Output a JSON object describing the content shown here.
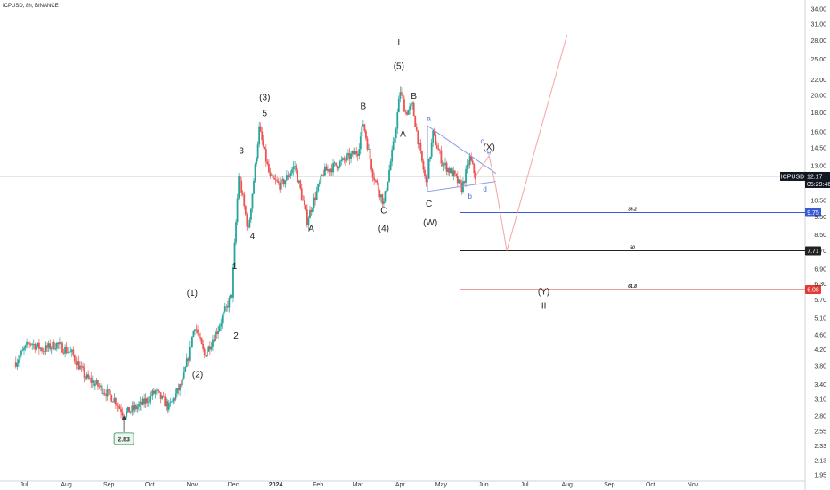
{
  "header": {
    "title": "ICPUSD, 8h, BINANCE"
  },
  "colors": {
    "up": "#26a69a",
    "down": "#ef5350",
    "fib382": "#3b5bd6",
    "fib50": "#222222",
    "fib618": "#e53935",
    "triangle": "#8a9be6",
    "projection": "#f4a5a5"
  },
  "chart_data": {
    "type": "candlestick",
    "y_axis": {
      "scale": "log",
      "ticks": [
        "34.00",
        "31.00",
        "28.00",
        "25.00",
        "22.00",
        "20.00",
        "18.00",
        "16.00",
        "14.50",
        "13.00",
        "10.50",
        "9.50",
        "8.50",
        "7.70",
        "6.90",
        "6.30",
        "5.70",
        "5.10",
        "4.60",
        "4.20",
        "3.80",
        "3.40",
        "3.10",
        "2.80",
        "2.55",
        "2.33",
        "2.13",
        "1.95"
      ]
    },
    "x_axis": {
      "ticks": [
        "Jul",
        "Aug",
        "Sep",
        "Oct",
        "Nov",
        "Dec",
        "2024",
        "Feb",
        "Mar",
        "Apr",
        "May",
        "Jun",
        "Jul",
        "Aug",
        "Sep",
        "Oct",
        "Nov"
      ]
    },
    "price_path": [
      {
        "date": "2023-06-25",
        "price": 3.9
      },
      {
        "date": "2023-07-05",
        "price": 4.4
      },
      {
        "date": "2023-07-15",
        "price": 4.2
      },
      {
        "date": "2023-07-25",
        "price": 4.35
      },
      {
        "date": "2023-08-05",
        "price": 4.1
      },
      {
        "date": "2023-08-15",
        "price": 3.55
      },
      {
        "date": "2023-08-25",
        "price": 3.35
      },
      {
        "date": "2023-09-05",
        "price": 3.1
      },
      {
        "date": "2023-09-12",
        "price": 2.83
      },
      {
        "date": "2023-09-25",
        "price": 3.0
      },
      {
        "date": "2023-10-05",
        "price": 3.25
      },
      {
        "date": "2023-10-15",
        "price": 2.95
      },
      {
        "date": "2023-10-25",
        "price": 3.45
      },
      {
        "date": "2023-11-03",
        "price": 4.9
      },
      {
        "date": "2023-11-10",
        "price": 4.05
      },
      {
        "date": "2023-11-20",
        "price": 4.8
      },
      {
        "date": "2023-11-30",
        "price": 5.9
      },
      {
        "date": "2023-12-05",
        "price": 12.3
      },
      {
        "date": "2023-12-12",
        "price": 8.7
      },
      {
        "date": "2023-12-20",
        "price": 16.3
      },
      {
        "date": "2023-12-28",
        "price": 12.0
      },
      {
        "date": "2024-01-05",
        "price": 11.5
      },
      {
        "date": "2024-01-15",
        "price": 13.0
      },
      {
        "date": "2024-01-24",
        "price": 9.3
      },
      {
        "date": "2024-02-05",
        "price": 12.5
      },
      {
        "date": "2024-02-20",
        "price": 13.4
      },
      {
        "date": "2024-03-01",
        "price": 14.2
      },
      {
        "date": "2024-03-05",
        "price": 16.9
      },
      {
        "date": "2024-03-12",
        "price": 12.4
      },
      {
        "date": "2024-03-20",
        "price": 10.3
      },
      {
        "date": "2024-03-28",
        "price": 15.5
      },
      {
        "date": "2024-04-01",
        "price": 20.6
      },
      {
        "date": "2024-04-05",
        "price": 18.0
      },
      {
        "date": "2024-04-10",
        "price": 18.7
      },
      {
        "date": "2024-04-15",
        "price": 14.5
      },
      {
        "date": "2024-04-20",
        "price": 11.6
      },
      {
        "date": "2024-04-25",
        "price": 15.8
      },
      {
        "date": "2024-05-02",
        "price": 13.2
      },
      {
        "date": "2024-05-10",
        "price": 12.3
      },
      {
        "date": "2024-05-16",
        "price": 11.3
      },
      {
        "date": "2024-05-22",
        "price": 13.6
      },
      {
        "date": "2024-05-26",
        "price": 12.17
      }
    ],
    "wave_labels": [
      {
        "text": "(1)",
        "date": "2023-11-01",
        "price": 5.85
      },
      {
        "text": "(2)",
        "date": "2023-11-05",
        "price": 3.55
      },
      {
        "text": "1",
        "date": "2023-12-02",
        "price": 6.9
      },
      {
        "text": "2",
        "date": "2023-12-03",
        "price": 4.5
      },
      {
        "text": "3",
        "date": "2023-12-07",
        "price": 14.0
      },
      {
        "text": "4",
        "date": "2023-12-15",
        "price": 8.3
      },
      {
        "text": "5",
        "date": "2023-12-24",
        "price": 17.6
      },
      {
        "text": "(3)",
        "date": "2023-12-24",
        "price": 19.4
      },
      {
        "text": "A",
        "date": "2024-01-27",
        "price": 8.7
      },
      {
        "text": "B",
        "date": "2024-03-05",
        "price": 18.4
      },
      {
        "text": "C",
        "date": "2024-03-20",
        "price": 9.7
      },
      {
        "text": "(4)",
        "date": "2024-03-20",
        "price": 8.7
      },
      {
        "text": "(5)",
        "date": "2024-03-31",
        "price": 23.5
      },
      {
        "text": "I",
        "date": "2024-03-31",
        "price": 27.2
      },
      {
        "text": "A",
        "date": "2024-04-03",
        "price": 15.5
      },
      {
        "text": "B",
        "date": "2024-04-11",
        "price": 19.6
      },
      {
        "text": "C",
        "date": "2024-04-22",
        "price": 10.1
      },
      {
        "text": "(W)",
        "date": "2024-04-23",
        "price": 9.0
      },
      {
        "text": "(X)",
        "date": "2024-06-05",
        "price": 14.3
      },
      {
        "text": "(Y)",
        "date": "2024-07-15",
        "price": 5.9
      },
      {
        "text": "II",
        "date": "2024-07-15",
        "price": 5.4
      }
    ],
    "triangle_labels": [
      {
        "text": "a",
        "date": "2024-04-22",
        "price": 17.1
      },
      {
        "text": "b",
        "date": "2024-05-22",
        "price": 10.6
      },
      {
        "text": "c",
        "date": "2024-05-31",
        "price": 14.9
      },
      {
        "text": "d",
        "date": "2024-06-02",
        "price": 11.1
      },
      {
        "text": "e",
        "date": "2024-06-05",
        "price": 13.9
      }
    ],
    "fib_levels": [
      {
        "label": "38.2",
        "price": 9.75,
        "tag": "9.75",
        "color": "#3b5bd6"
      },
      {
        "label": "50",
        "price": 7.71,
        "tag": "7.71",
        "color": "#222222"
      },
      {
        "label": "61.8",
        "price": 6.08,
        "tag": "6.08",
        "color": "#e53935"
      }
    ],
    "current": {
      "symbol": "ICPUSD",
      "price": "12.17",
      "countdown": "05:29:46",
      "value": 12.17
    },
    "low_label": {
      "text": "2.83",
      "date": "2023-09-12",
      "price": 2.83
    },
    "projection_path": [
      {
        "date": "2024-05-26",
        "price": 12.17
      },
      {
        "date": "2024-06-05",
        "price": 13.8
      },
      {
        "date": "2024-06-10",
        "price": 11.4
      },
      {
        "date": "2024-06-18",
        "price": 7.71
      },
      {
        "date": "2024-08-01",
        "price": 29.0
      }
    ],
    "triangle": {
      "upper": [
        {
          "date": "2024-04-21",
          "price": 16.6
        },
        {
          "date": "2024-06-10",
          "price": 12.4
        }
      ],
      "lower": [
        {
          "date": "2024-04-21",
          "price": 11.1
        },
        {
          "date": "2024-06-10",
          "price": 11.8
        }
      ]
    }
  }
}
